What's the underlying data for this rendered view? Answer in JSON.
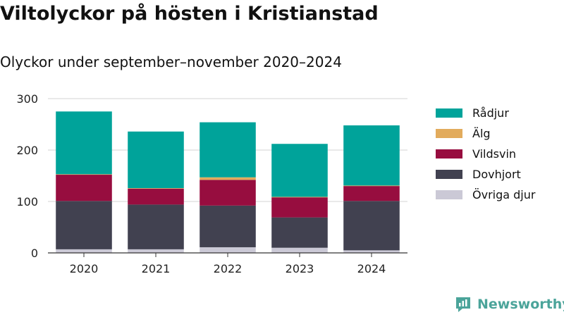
{
  "title": "Viltolyckor på hösten i Kristianstad",
  "subtitle": "Olyckor under september–november 2020–2024",
  "brand": "Newsworthy",
  "chart_data": {
    "type": "bar",
    "stacked": true,
    "title": "Viltolyckor på hösten i Kristianstad",
    "subtitle": "Olyckor under september–november 2020–2024",
    "categories": [
      "2020",
      "2021",
      "2022",
      "2023",
      "2024"
    ],
    "ylim": [
      0,
      300
    ],
    "yticks": [
      0,
      100,
      200,
      300
    ],
    "grid": true,
    "legend_position": "right",
    "series": [
      {
        "name": "Övriga djur",
        "color": "#cbc9d6",
        "values": [
          7,
          7,
          11,
          10,
          5
        ]
      },
      {
        "name": "Dovhjort",
        "color": "#414150",
        "values": [
          94,
          87,
          81,
          59,
          96
        ]
      },
      {
        "name": "Vildsvin",
        "color": "#970d3f",
        "values": [
          51,
          31,
          50,
          39,
          29
        ]
      },
      {
        "name": "Älg",
        "color": "#e2ab5c",
        "values": [
          1,
          1,
          5,
          1,
          1
        ]
      },
      {
        "name": "Rådjur",
        "color": "#00a39a",
        "values": [
          122,
          110,
          107,
          103,
          117
        ]
      }
    ]
  }
}
